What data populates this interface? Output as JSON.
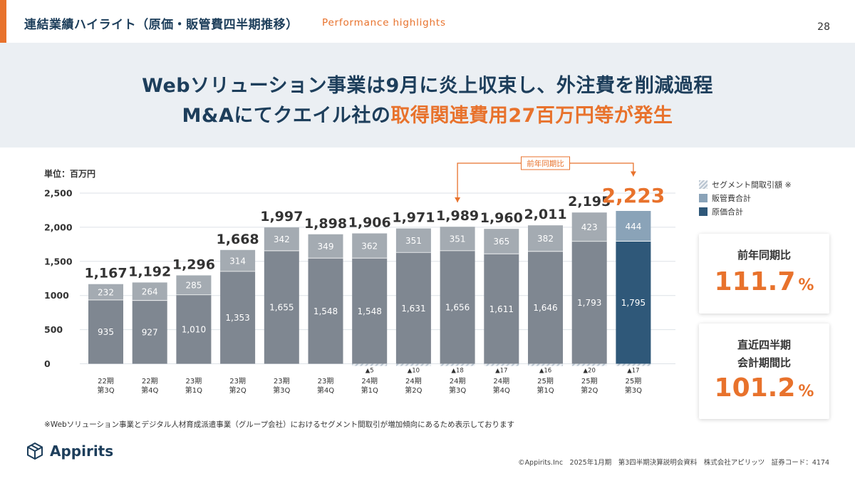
{
  "header": {
    "title": "連結業績ハイライト（原価・販管費四半期推移）",
    "subtitle": "Performance highlights",
    "page_number": "28"
  },
  "banner": {
    "line1": "Webソリューション事業は9月に炎上収束し、外注費を削減過程",
    "line2_prefix": "M&Aにてクエイル社の",
    "line2_highlight": "取得関連費用27百万円等が発生"
  },
  "legend": {
    "segment": "セグメント間取引額 ※",
    "sga": "販管費合計",
    "cogs": "原価合計"
  },
  "cards": {
    "yoy_label": "前年同期比",
    "yoy_value": "111.7",
    "yoy_unit": "%",
    "qoq_label_line1": "直近四半期",
    "qoq_label_line2": "会計期間比",
    "qoq_value": "101.2",
    "qoq_unit": "%"
  },
  "footnote": "※Webソリューション事業とデジタル人材育成派遣事業（グループ会社）におけるセグメント間取引が増加傾向にあるため表示しております",
  "footer": {
    "logo_text": "Appirits",
    "copyright": "©Appirits.Inc　2025年1月期　第3四半期決算説明会資料　株式会社アピリッツ　証券コード：4174"
  },
  "colors": {
    "cogs": "#7f8791",
    "sga": "#a4abb2",
    "cogs_highlight": "#2f5879",
    "sga_highlight": "#8aa3b8",
    "accent": "#e8722c",
    "navy": "#1d3e5b"
  },
  "chart_data": {
    "type": "bar",
    "stacked": true,
    "unit_label": "単位：百万円",
    "yticks": [
      "0",
      "500",
      "1000",
      "1,500",
      "2,000",
      "2,500"
    ],
    "ylim": [
      0,
      2500
    ],
    "categories": [
      [
        "22期",
        "第3Q"
      ],
      [
        "22期",
        "第4Q"
      ],
      [
        "23期",
        "第1Q"
      ],
      [
        "23期",
        "第2Q"
      ],
      [
        "23期",
        "第3Q"
      ],
      [
        "23期",
        "第4Q"
      ],
      [
        "24期",
        "第1Q"
      ],
      [
        "24期",
        "第2Q"
      ],
      [
        "24期",
        "第3Q"
      ],
      [
        "24期",
        "第4Q"
      ],
      [
        "25期",
        "第1Q"
      ],
      [
        "25期",
        "第2Q"
      ],
      [
        "25期",
        "第3Q"
      ]
    ],
    "series": [
      {
        "name": "原価合計",
        "values": [
          935,
          927,
          1010,
          1353,
          1655,
          1548,
          1548,
          1631,
          1656,
          1611,
          1646,
          1793,
          1795
        ],
        "labels": [
          "935",
          "927",
          "1,010",
          "1,353",
          "1,655",
          "1,548",
          "1,548",
          "1,631",
          "1,656",
          "1,611",
          "1,646",
          "1,793",
          "1,795"
        ]
      },
      {
        "name": "販管費合計",
        "values": [
          232,
          264,
          285,
          314,
          342,
          349,
          362,
          351,
          351,
          365,
          382,
          423,
          444
        ],
        "labels": [
          "232",
          "264",
          "285",
          "314",
          "342",
          "349",
          "362",
          "351",
          "351",
          "365",
          "382",
          "423",
          "444"
        ]
      }
    ],
    "segment_eliminations": [
      null,
      null,
      null,
      null,
      null,
      null,
      5,
      10,
      18,
      17,
      16,
      20,
      17
    ],
    "segment_labels": [
      "",
      "",
      "",
      "",
      "",
      "",
      "▲5",
      "▲10",
      "▲18",
      "▲17",
      "▲16",
      "▲20",
      "▲17"
    ],
    "totals": [
      1167,
      1192,
      1296,
      1668,
      1997,
      1898,
      1906,
      1971,
      1989,
      1960,
      2011,
      2195,
      2223
    ],
    "total_labels": [
      "1,167",
      "1,192",
      "1,296",
      "1,668",
      "1,997",
      "1,898",
      "1,906",
      "1,971",
      "1,989",
      "1,960",
      "2,011",
      "2,195",
      "2,223"
    ],
    "highlight_index": 12,
    "comparison": {
      "label": "前年同期比",
      "from_index": 8,
      "to_index": 12
    }
  }
}
